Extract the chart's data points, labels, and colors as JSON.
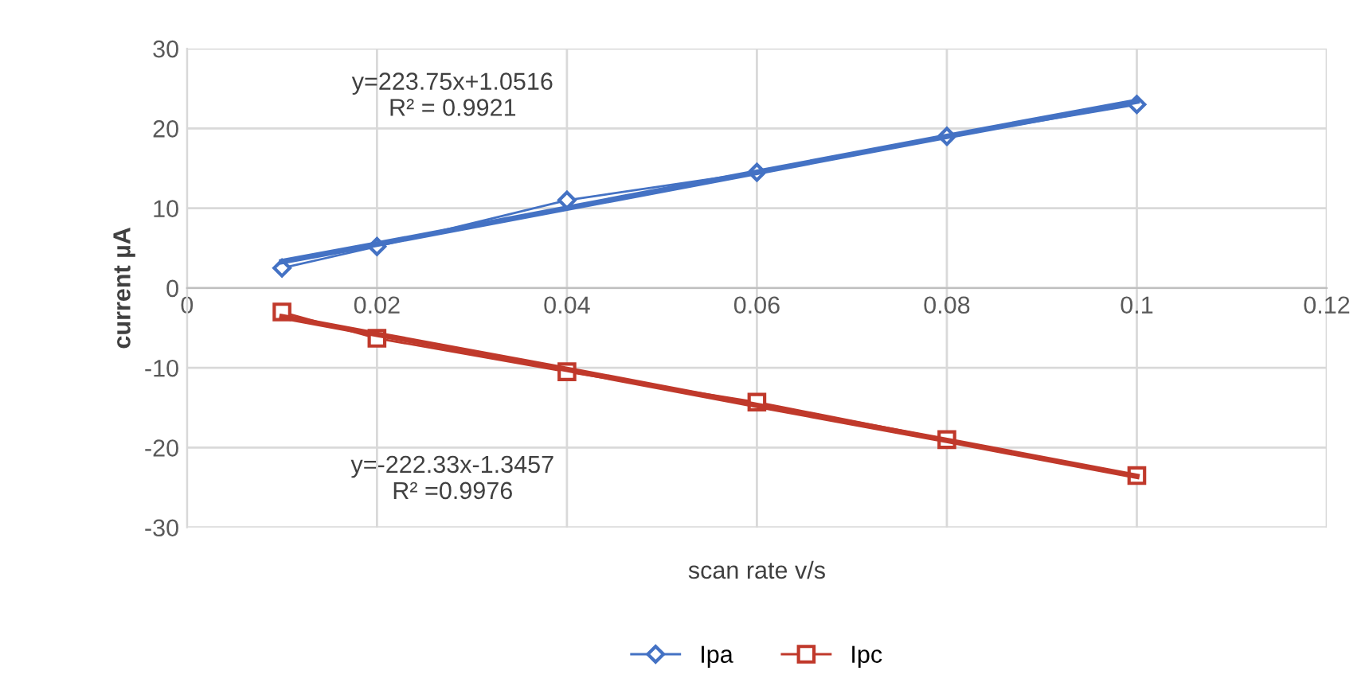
{
  "chart_data": {
    "type": "line",
    "xlabel": "scan rate v/s",
    "ylabel": "current µA",
    "xlim": [
      0,
      0.12
    ],
    "xticks": [
      0,
      0.02,
      0.04,
      0.06,
      0.08,
      0.1,
      0.12
    ],
    "ylim": [
      -30,
      30
    ],
    "yticks": [
      -30,
      -20,
      -10,
      0,
      10,
      20,
      30
    ],
    "x": [
      0.01,
      0.02,
      0.04,
      0.06,
      0.08,
      0.1
    ],
    "series": [
      {
        "name": "Ipa",
        "color": "#4472c4",
        "marker": "diamond",
        "values": [
          2.5,
          5.2,
          11,
          14.5,
          19,
          23
        ]
      },
      {
        "name": "Ipc",
        "color": "#c0392b",
        "marker": "square",
        "values": [
          -3,
          -6.3,
          -10.5,
          -14.3,
          -19,
          -23.5
        ]
      },
      {
        "color": "#4472c4",
        "marker": "none",
        "values": [
          3.3,
          5.5,
          10,
          14.5,
          19,
          23.4
        ]
      },
      {
        "color": "#c0392b",
        "marker": "none",
        "values": [
          -3.6,
          -5.8,
          -10.2,
          -14.7,
          -19.1,
          -23.6
        ]
      }
    ],
    "annotations": [
      "y=223.75x+1.0516\nR² = 0.9921",
      "y=-222.33x-1.3457\nR² =0.9976"
    ],
    "grid": true,
    "legend": "bottom"
  }
}
